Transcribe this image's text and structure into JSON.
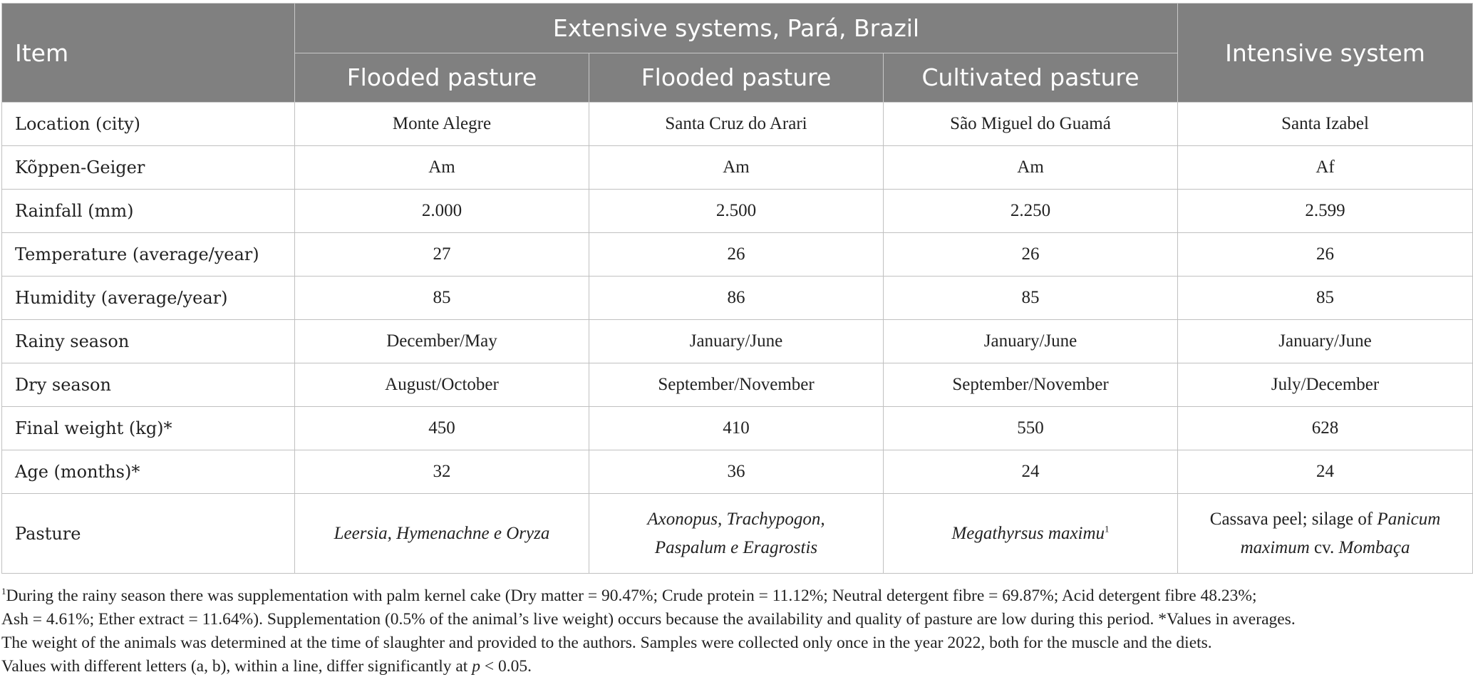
{
  "header": {
    "item": "Item",
    "group": "Extensive systems, Pará, Brazil",
    "intensive": "Intensive system",
    "sub": [
      "Flooded pasture",
      "Flooded pasture",
      "Cultivated pasture"
    ]
  },
  "rows": [
    {
      "label": "Location (city)",
      "cells": [
        "Monte Alegre",
        "Santa Cruz do Arari",
        "São Miguel do Guamá",
        "Santa Izabel"
      ]
    },
    {
      "label": "Kõppen-Geiger",
      "cells": [
        "Am",
        "Am",
        "Am",
        "Af"
      ]
    },
    {
      "label": "Rainfall (mm)",
      "cells": [
        "2.000",
        "2.500",
        "2.250",
        "2.599"
      ]
    },
    {
      "label": "Temperature (average/year)",
      "cells": [
        "27",
        "26",
        "26",
        "26"
      ]
    },
    {
      "label": "Humidity (average/year)",
      "cells": [
        "85",
        "86",
        "85",
        "85"
      ]
    },
    {
      "label": "Rainy season",
      "cells": [
        "December/May",
        "January/June",
        "January/June",
        "January/June"
      ]
    },
    {
      "label": "Dry season",
      "cells": [
        "August/October",
        "September/November",
        "September/November",
        "July/December"
      ]
    },
    {
      "label": "Final weight (kg)*",
      "cells": [
        "450",
        "410",
        "550",
        "628"
      ]
    },
    {
      "label": "Age (months)*",
      "cells": [
        "32",
        "36",
        "24",
        "24"
      ]
    }
  ],
  "pasture": {
    "label": "Pasture",
    "c1": "Leersia, Hymenachne e Oryza",
    "c2_line1": "Axonopus, Trachypogon,",
    "c2_line2": "Paspalum e Eragrostis",
    "c3": "Megathyrsus maximu",
    "c3_sup": "1",
    "c4_a": "Cassava peel; silage of ",
    "c4_b": "Panicum",
    "c4_c": "maximum",
    "c4_d": " cv. ",
    "c4_e": "Mombaça"
  },
  "notes": {
    "sup": "1",
    "line1": "During the rainy season there was supplementation with palm kernel cake (Dry matter = 90.47%; Crude protein = 11.12%; Neutral detergent fibre = 69.87%; Acid detergent fibre 48.23%;",
    "line2": "Ash = 4.61%; Ether extract = 11.64%). Supplementation (0.5% of the animal’s live weight) occurs because the availability and quality of pasture are low during this period. *Values in averages.",
    "line3": "The weight of the animals was determined at the time of slaughter and provided to the authors. Samples were collected only once in the year 2022, both for the muscle and the diets.",
    "line4_a": "Values with different letters (a, b), within a line, differ significantly at ",
    "line4_p": "p",
    "line4_b": " < 0.05."
  }
}
